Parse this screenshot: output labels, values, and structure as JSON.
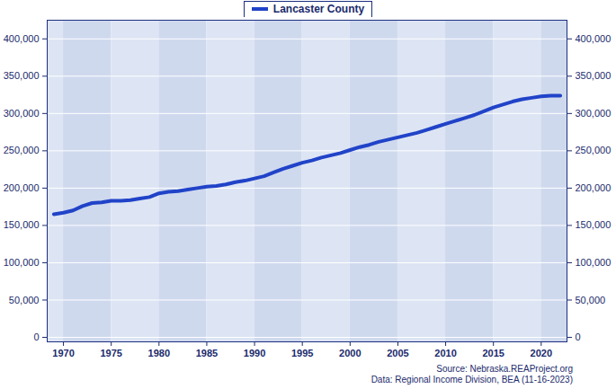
{
  "chart_data": {
    "type": "line",
    "x": [
      1969,
      1970,
      1971,
      1972,
      1973,
      1974,
      1975,
      1976,
      1977,
      1978,
      1979,
      1980,
      1981,
      1982,
      1983,
      1984,
      1985,
      1986,
      1987,
      1988,
      1989,
      1990,
      1991,
      1992,
      1993,
      1994,
      1995,
      1996,
      1997,
      1998,
      1999,
      2000,
      2001,
      2002,
      2003,
      2004,
      2005,
      2006,
      2007,
      2008,
      2009,
      2010,
      2011,
      2012,
      2013,
      2014,
      2015,
      2016,
      2017,
      2018,
      2019,
      2020,
      2021,
      2022
    ],
    "series": [
      {
        "name": "Lancaster County",
        "color": "#2043c8",
        "values": [
          165000,
          167000,
          170000,
          176000,
          180000,
          181000,
          183000,
          183000,
          184000,
          186000,
          188000,
          193000,
          195000,
          196000,
          198000,
          200000,
          202000,
          203000,
          205000,
          208000,
          210000,
          213000,
          216000,
          221000,
          226000,
          230000,
          234000,
          237000,
          241000,
          244000,
          247000,
          251000,
          255000,
          258000,
          262000,
          265000,
          268000,
          271000,
          274000,
          278000,
          282000,
          286000,
          290000,
          294000,
          298000,
          303000,
          308000,
          312000,
          316000,
          319000,
          321000,
          323000,
          324000,
          324000
        ]
      }
    ],
    "xlim": [
      1968.3,
      2022.7
    ],
    "xticks": [
      1970,
      1975,
      1980,
      1985,
      1990,
      1995,
      2000,
      2005,
      2010,
      2015,
      2020
    ],
    "ylim": [
      -6000,
      425000
    ],
    "yticks": [
      0,
      {
        "value": 50000,
        "label": "50,000"
      },
      {
        "value": 100000,
        "label": "100,000"
      },
      {
        "value": 150000,
        "label": "150,000"
      },
      {
        "value": 200000,
        "label": "200,000"
      },
      {
        "value": 250000,
        "label": "250,000"
      },
      {
        "value": 300000,
        "label": "300,000"
      },
      {
        "value": 350000,
        "label": "350,000"
      },
      {
        "value": 400000,
        "label": "400,000"
      }
    ],
    "grid": true,
    "legend": "top",
    "annotations": [
      "Source: Nebraska.REAProject.org",
      "Data: Regional Income Division, BEA (11-16-2023)"
    ]
  }
}
